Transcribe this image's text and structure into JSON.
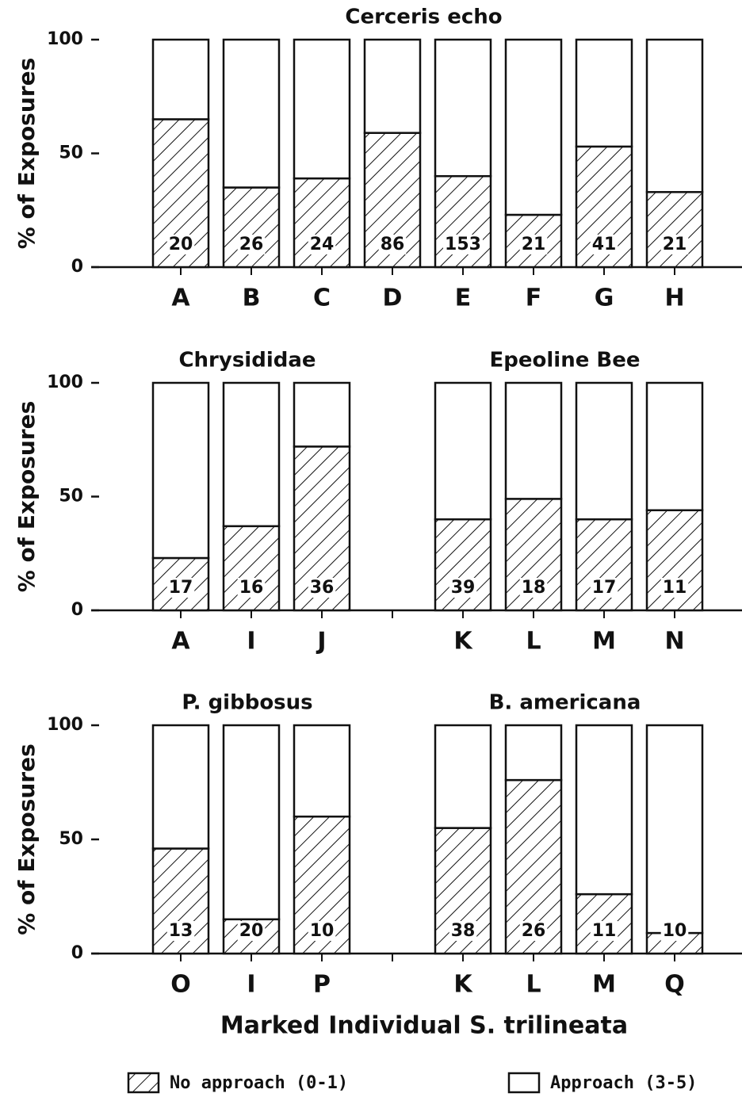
{
  "xlabel": "Marked Individual S. trilineata",
  "legend": [
    {
      "name": "No approach (0-1)",
      "pattern": "hatch"
    },
    {
      "name": "Approach (3-5)",
      "pattern": "none"
    }
  ],
  "chart_data": [
    {
      "type": "bar",
      "stacked": true,
      "ylabel": "% of Exposures",
      "ylim": [
        0,
        100
      ],
      "yticks": [
        0,
        50,
        100
      ],
      "groups": [
        {
          "title": "Cerceris echo",
          "categories": [
            "A",
            "B",
            "C",
            "D",
            "E",
            "F",
            "G",
            "H"
          ],
          "series": [
            {
              "values": [
                65,
                35,
                39,
                59,
                40,
                23,
                53,
                33
              ]
            },
            {
              "values": [
                35,
                65,
                61,
                41,
                60,
                77,
                47,
                67
              ]
            }
          ],
          "n": [
            20,
            26,
            24,
            86,
            153,
            21,
            41,
            21
          ]
        }
      ]
    },
    {
      "type": "bar",
      "stacked": true,
      "ylabel": "% of Exposures",
      "ylim": [
        0,
        100
      ],
      "yticks": [
        0,
        50,
        100
      ],
      "groups": [
        {
          "title": "Chrysididae",
          "categories": [
            "A",
            "I",
            "J"
          ],
          "series": [
            {
              "values": [
                23,
                37,
                72
              ]
            },
            {
              "values": [
                77,
                63,
                28
              ]
            }
          ],
          "n": [
            17,
            16,
            36
          ]
        },
        {
          "title": "Epeoline Bee",
          "categories": [
            "K",
            "L",
            "M",
            "N"
          ],
          "series": [
            {
              "values": [
                40,
                49,
                40,
                44
              ]
            },
            {
              "values": [
                60,
                51,
                60,
                56
              ]
            }
          ],
          "n": [
            39,
            18,
            17,
            11
          ]
        }
      ]
    },
    {
      "type": "bar",
      "stacked": true,
      "ylabel": "% of Exposures",
      "ylim": [
        0,
        100
      ],
      "yticks": [
        0,
        50,
        100
      ],
      "groups": [
        {
          "title": "P. gibbosus",
          "categories": [
            "O",
            "I",
            "P"
          ],
          "series": [
            {
              "values": [
                46,
                15,
                60
              ]
            },
            {
              "values": [
                54,
                85,
                40
              ]
            }
          ],
          "n": [
            13,
            20,
            10
          ]
        },
        {
          "title": "B. americana",
          "categories": [
            "K",
            "L",
            "M",
            "Q"
          ],
          "series": [
            {
              "values": [
                55,
                76,
                26,
                9
              ]
            },
            {
              "values": [
                45,
                24,
                74,
                91
              ]
            }
          ],
          "n": [
            38,
            26,
            11,
            10
          ]
        }
      ]
    }
  ]
}
